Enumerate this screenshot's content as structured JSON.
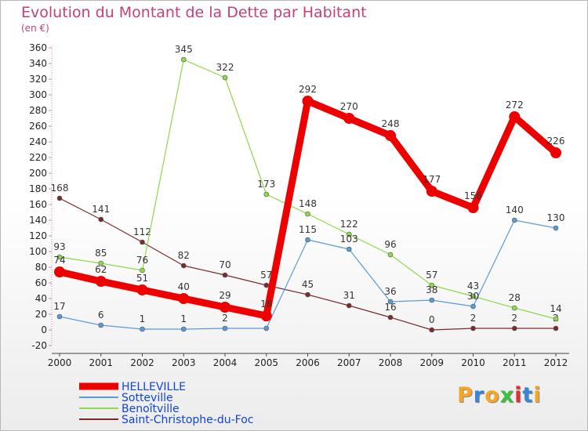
{
  "header": {
    "title": "Evolution du Montant de la Dette par Habitant",
    "unit": "(en €)"
  },
  "logo": {
    "text": "Proxiti",
    "letters": [
      {
        "ch": "P",
        "color": "#f5a623"
      },
      {
        "ch": "r",
        "color": "#3a86d6"
      },
      {
        "ch": "o",
        "color": "#f5a623"
      },
      {
        "ch": "x",
        "color": "#3fbf3f"
      },
      {
        "ch": "i",
        "color": "#e03030"
      },
      {
        "ch": "t",
        "color": "#3a86d6"
      },
      {
        "ch": "i",
        "color": "#f5a623"
      }
    ]
  },
  "chart_data": {
    "type": "line",
    "title": "Evolution du Montant de la Dette par Habitant",
    "subtitle": "(en €)",
    "xlabel": "",
    "ylabel": "",
    "x": [
      "2000",
      "2001",
      "2002",
      "2003",
      "2004",
      "2005",
      "2006",
      "2007",
      "2008",
      "2009",
      "2010",
      "2011",
      "2012"
    ],
    "ylim": [
      -20,
      360
    ],
    "yticks": [
      -20,
      0,
      20,
      40,
      60,
      80,
      100,
      120,
      140,
      160,
      180,
      200,
      220,
      240,
      260,
      280,
      300,
      320,
      340,
      360
    ],
    "grid": false,
    "legend_position": "bottom-left",
    "series": [
      {
        "name": "HELLEVILLE",
        "color": "#ee0000",
        "values": [
          74,
          62,
          51,
          40,
          29,
          18,
          292,
          270,
          248,
          177,
          156,
          272,
          226
        ]
      },
      {
        "name": "Sotteville",
        "color": "#5b9bd5",
        "values": [
          17,
          6,
          1,
          1,
          2,
          2,
          115,
          103,
          36,
          38,
          30,
          140,
          130
        ]
      },
      {
        "name": "Benoîtville",
        "color": "#8fd84b",
        "values": [
          93,
          85,
          76,
          345,
          322,
          173,
          148,
          122,
          96,
          57,
          43,
          28,
          14
        ]
      },
      {
        "name": "Saint-Christophe-du-Foc",
        "color": "#7a2b2b",
        "values": [
          168,
          141,
          112,
          82,
          70,
          57,
          45,
          31,
          16,
          0,
          2,
          2,
          2
        ]
      }
    ]
  }
}
